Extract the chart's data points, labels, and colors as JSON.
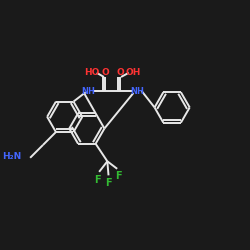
{
  "bg_color": "#1a1a1a",
  "bond_color": "#e8e8e8",
  "color_O": "#ff3333",
  "color_N": "#4466ff",
  "color_F": "#33bb33",
  "lw": 1.4,
  "fig_w": 2.5,
  "fig_h": 2.5,
  "dpi": 100,
  "xlim": [
    0,
    10
  ],
  "ylim": [
    0,
    10
  ]
}
